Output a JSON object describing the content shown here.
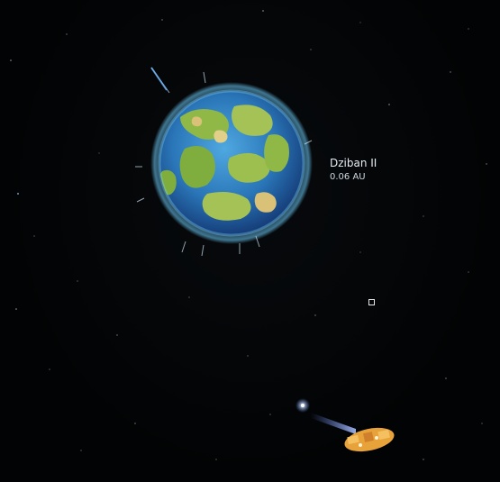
{
  "planet": {
    "name": "Dziban II",
    "distance": "0.06 AU"
  },
  "colors": {
    "space": "#020304",
    "ocean": "#2f7fc4",
    "land": "#8fb847",
    "atmosphere": "#5fc4ff",
    "ship_hull": "#e8a23a",
    "engine_trail": "#6a8cff"
  },
  "icons": {
    "waypoint": "waypoint-marker",
    "ship": "player-ship-icon",
    "star": "distant-star"
  }
}
